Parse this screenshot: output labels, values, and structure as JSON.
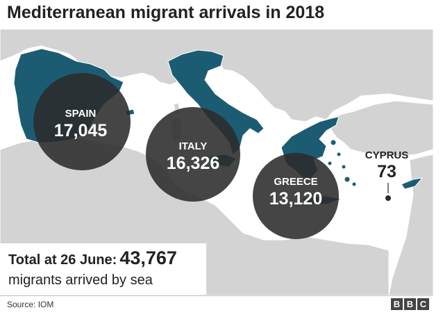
{
  "title": "Mediterranean migrant arrivals in 2018",
  "colors": {
    "sea": "#ffffff",
    "land": "#d3d3d3",
    "border": "#ffffff",
    "highlight_country": "#1c5c72",
    "bubble": "#2b2b2b",
    "text_dark": "#222222"
  },
  "countries": [
    {
      "name": "SPAIN",
      "value": "17,045"
    },
    {
      "name": "ITALY",
      "value": "16,326"
    },
    {
      "name": "GREECE",
      "value": "13,120"
    },
    {
      "name": "CYPRUS",
      "value": "73"
    }
  ],
  "total": {
    "label": "Total at 26 June:",
    "value": "43,767",
    "subtext": "migrants arrived by sea"
  },
  "source": "Source: IOM",
  "logo": [
    "B",
    "B",
    "C"
  ]
}
